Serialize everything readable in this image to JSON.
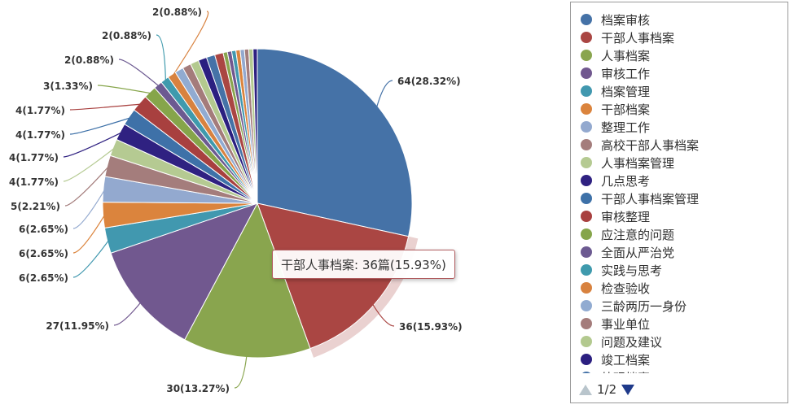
{
  "chart_data": {
    "type": "pie",
    "unit": "篇",
    "slices": [
      {
        "name": "档案审核",
        "value": 64,
        "percent": "28.32%",
        "label": "64(28.32%)",
        "color": "#4572a7"
      },
      {
        "name": "干部人事档案",
        "value": 36,
        "percent": "15.93%",
        "label": "36(15.93%)",
        "color": "#aa4643"
      },
      {
        "name": "人事档案",
        "value": 30,
        "percent": "13.27%",
        "label": "30(13.27%)",
        "color": "#89a54e"
      },
      {
        "name": "审核工作",
        "value": 27,
        "percent": "11.95%",
        "label": "27(11.95%)",
        "color": "#71588f"
      },
      {
        "name": "档案管理",
        "value": 6,
        "percent": "2.65%",
        "label": "6(2.65%)",
        "color": "#4198af"
      },
      {
        "name": "干部档案",
        "value": 6,
        "percent": "2.65%",
        "label": "6(2.65%)",
        "color": "#db843d"
      },
      {
        "name": "整理工作",
        "value": 6,
        "percent": "2.65%",
        "label": "6(2.65%)",
        "color": "#93a9cf"
      },
      {
        "name": "高校干部人事档案",
        "value": 5,
        "percent": "2.21%",
        "label": "5(2.21%)",
        "color": "#a47d7c"
      },
      {
        "name": "人事档案管理",
        "value": 4,
        "percent": "1.77%",
        "label": "4(1.77%)",
        "color": "#b5ca92"
      },
      {
        "name": "几点思考",
        "value": 4,
        "percent": "1.77%",
        "label": "4(1.77%)",
        "color": "#2f2181"
      },
      {
        "name": "干部人事档案管理",
        "value": 4,
        "percent": "1.77%",
        "label": "4(1.77%)",
        "color": "#3e71a8"
      },
      {
        "name": "审核整理",
        "value": 4,
        "percent": "1.77%",
        "label": "4(1.77%)",
        "color": "#a8403f"
      },
      {
        "name": "应注意的问题",
        "value": 3,
        "percent": "1.33%",
        "label": "3(1.33%)",
        "color": "#86a54a"
      },
      {
        "name": "全面从严治党",
        "value": 2,
        "percent": "0.88%",
        "label": "2(0.88%)",
        "color": "#6c5a91"
      },
      {
        "name": "实践与思考",
        "value": 2,
        "percent": "0.88%",
        "label": "2(0.88%)",
        "color": "#3f9aad"
      },
      {
        "name": "检查验收",
        "value": 2,
        "percent": "0.88%",
        "label": "2(0.88%)",
        "color": "#d8823f"
      },
      {
        "name": "三龄两历一身份",
        "value": 2,
        "percent": "0.88%",
        "label": "",
        "color": "#91abd1"
      },
      {
        "name": "事业单位",
        "value": 2,
        "percent": "0.88%",
        "label": "",
        "color": "#a47c7b"
      },
      {
        "name": "问题及建议",
        "value": 2,
        "percent": "0.88%",
        "label": "",
        "color": "#b3c98f"
      },
      {
        "name": "竣工档案",
        "value": 2,
        "percent": "0.88%",
        "label": "",
        "color": "#2b1f80"
      },
      {
        "name": "",
        "value": 2,
        "percent": "0.88%",
        "label": "",
        "color": "#4572a7"
      },
      {
        "name": "",
        "value": 2,
        "percent": "0.88%",
        "label": "",
        "color": "#aa4643"
      },
      {
        "name": "",
        "value": 1,
        "percent": "0.44%",
        "label": "",
        "color": "#89a54e"
      },
      {
        "name": "",
        "value": 1,
        "percent": "0.44%",
        "label": "",
        "color": "#71588f"
      },
      {
        "name": "",
        "value": 1,
        "percent": "0.44%",
        "label": "",
        "color": "#4198af"
      },
      {
        "name": "",
        "value": 1,
        "percent": "0.44%",
        "label": "",
        "color": "#db843d"
      },
      {
        "name": "",
        "value": 1,
        "percent": "0.44%",
        "label": "",
        "color": "#93a9cf"
      },
      {
        "name": "",
        "value": 1,
        "percent": "0.44%",
        "label": "",
        "color": "#a47d7c"
      },
      {
        "name": "",
        "value": 1,
        "percent": "0.44%",
        "label": "",
        "color": "#b5ca92"
      },
      {
        "name": "",
        "value": 1,
        "percent": "0.44%",
        "label": "",
        "color": "#2f2181"
      }
    ],
    "legend_position": "right",
    "highlighted_slice": 1
  },
  "legend": {
    "items": [
      {
        "name": "档案审核",
        "color": "#4572a7"
      },
      {
        "name": "干部人事档案",
        "color": "#aa4643"
      },
      {
        "name": "人事档案",
        "color": "#89a54e"
      },
      {
        "name": "审核工作",
        "color": "#71588f"
      },
      {
        "name": "档案管理",
        "color": "#4198af"
      },
      {
        "name": "干部档案",
        "color": "#db843d"
      },
      {
        "name": "整理工作",
        "color": "#93a9cf"
      },
      {
        "name": "高校干部人事档案",
        "color": "#a47d7c"
      },
      {
        "name": "人事档案管理",
        "color": "#b5ca92"
      },
      {
        "name": "几点思考",
        "color": "#2f2181"
      },
      {
        "name": "干部人事档案管理",
        "color": "#3e71a8"
      },
      {
        "name": "审核整理",
        "color": "#a8403f"
      },
      {
        "name": "应注意的问题",
        "color": "#86a54a"
      },
      {
        "name": "全面从严治党",
        "color": "#6c5a91"
      },
      {
        "name": "实践与思考",
        "color": "#3f9aad"
      },
      {
        "name": "检查验收",
        "color": "#d8823f"
      },
      {
        "name": "三龄两历一身份",
        "color": "#91abd1"
      },
      {
        "name": "事业单位",
        "color": "#a47c7b"
      },
      {
        "name": "问题及建议",
        "color": "#b3c98f"
      },
      {
        "name": "竣工档案",
        "color": "#2b1f80"
      },
      {
        "name": "外观档案",
        "color": "#4572a7"
      }
    ],
    "page_text": "1/2"
  },
  "tooltip": {
    "text": "干部人事档案: 36篇(15.93%)"
  }
}
